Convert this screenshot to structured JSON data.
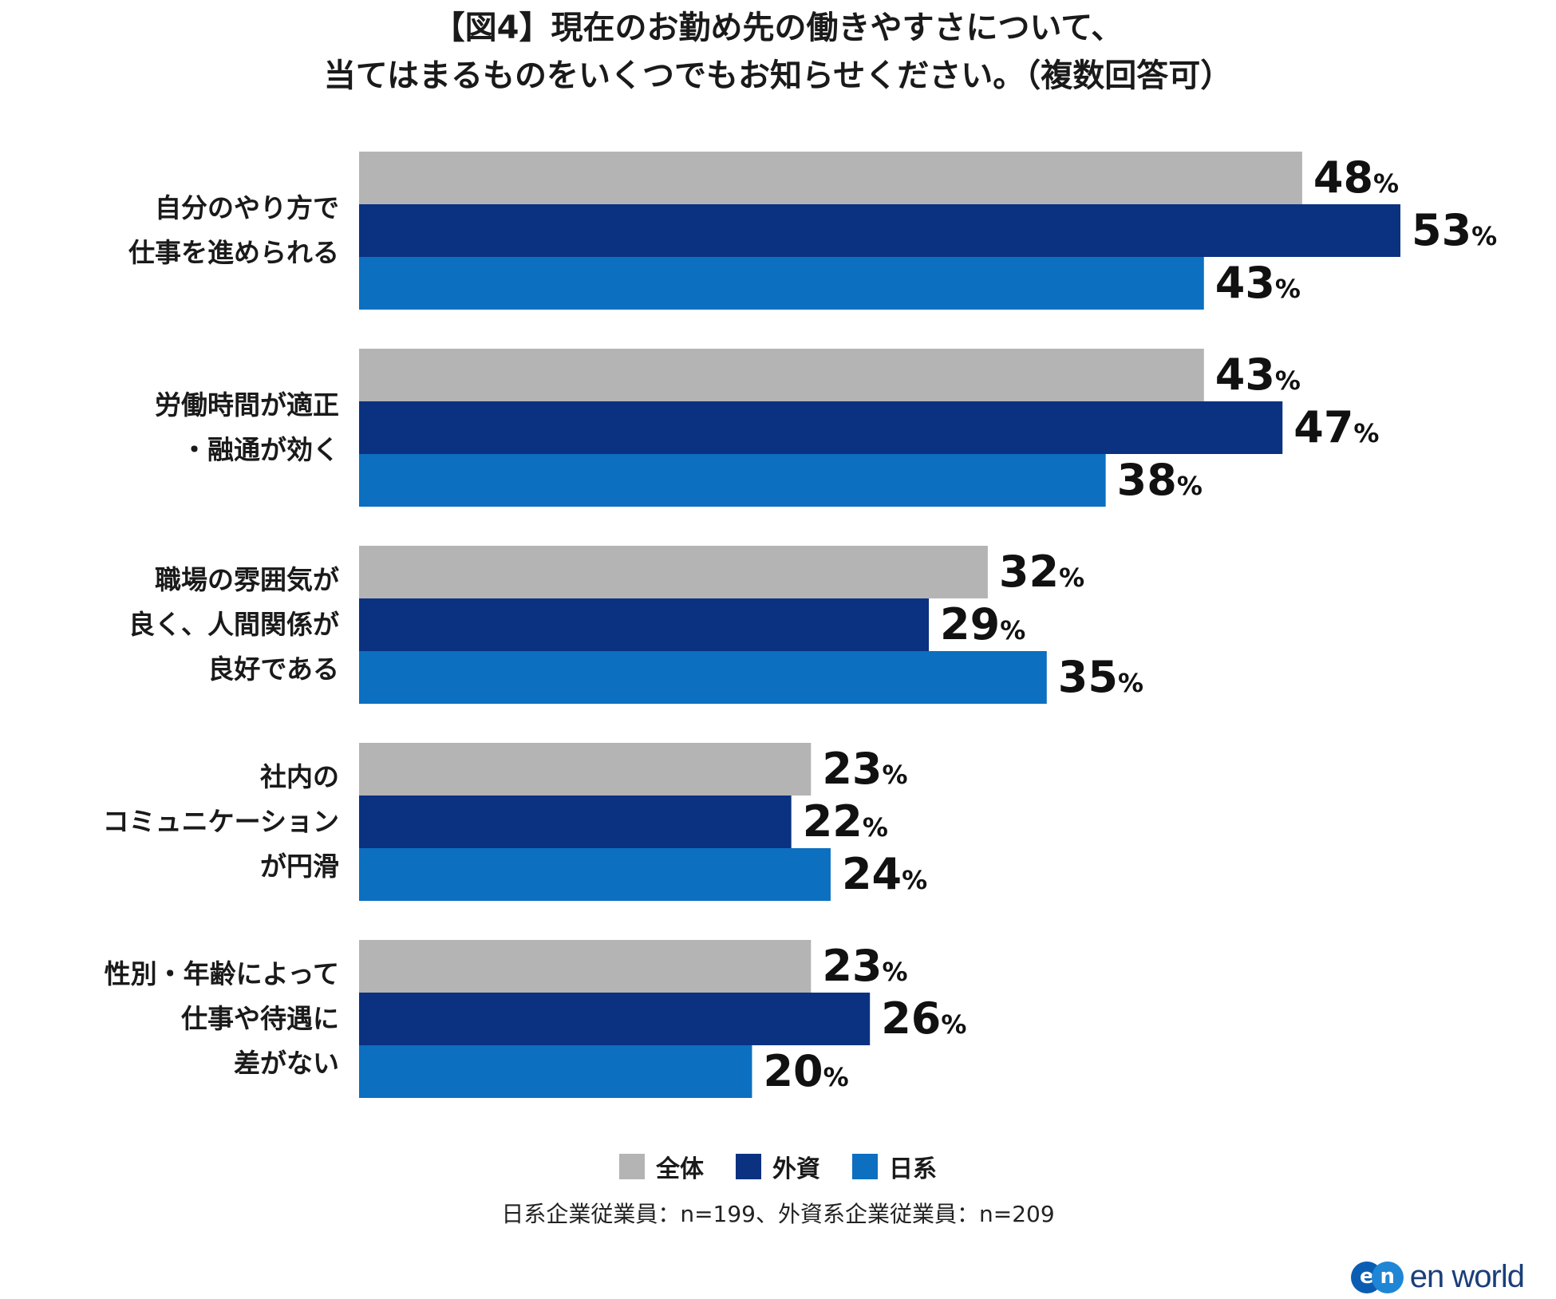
{
  "title_lines": [
    "【図4】現在のお勤め先の働きやすさについて、",
    "当てはまるものをいくつでもお知らせください。（複数回答可）"
  ],
  "chart_data": {
    "type": "bar",
    "orientation": "horizontal",
    "title": "【図4】現在のお勤め先の働きやすさについて、当てはまるものをいくつでもお知らせください。（複数回答可）",
    "categories": [
      [
        "自分のやり方で",
        "仕事を進められる"
      ],
      [
        "労働時間が適正",
        "・融通が効く"
      ],
      [
        "職場の雰囲気が",
        "良く、人間関係が",
        "良好である"
      ],
      [
        "社内の",
        "コミュニケーション",
        "が円滑"
      ],
      [
        "性別・年齢によって",
        "仕事や待遇に",
        "差がない"
      ]
    ],
    "series": [
      {
        "name": "全体",
        "color": "#b4b4b4",
        "values": [
          48,
          43,
          32,
          23,
          23
        ]
      },
      {
        "name": "外資",
        "color": "#0b3181",
        "values": [
          53,
          47,
          29,
          22,
          26
        ]
      },
      {
        "name": "日系",
        "color": "#0c6fc0",
        "values": [
          43,
          38,
          35,
          24,
          20
        ]
      }
    ],
    "unit": "%",
    "xlim": [
      0,
      53
    ],
    "grid": false,
    "legend_position": "bottom-center"
  },
  "legend": [
    {
      "label": "全体",
      "color": "#b4b4b4"
    },
    {
      "label": "外資",
      "color": "#0b3181"
    },
    {
      "label": "日系",
      "color": "#0c6fc0"
    }
  ],
  "note": "日系企業従業員：n=199、外資系企業従業員：n=209",
  "logo": {
    "mark_left": "e",
    "mark_right": "n",
    "text": "en world"
  }
}
